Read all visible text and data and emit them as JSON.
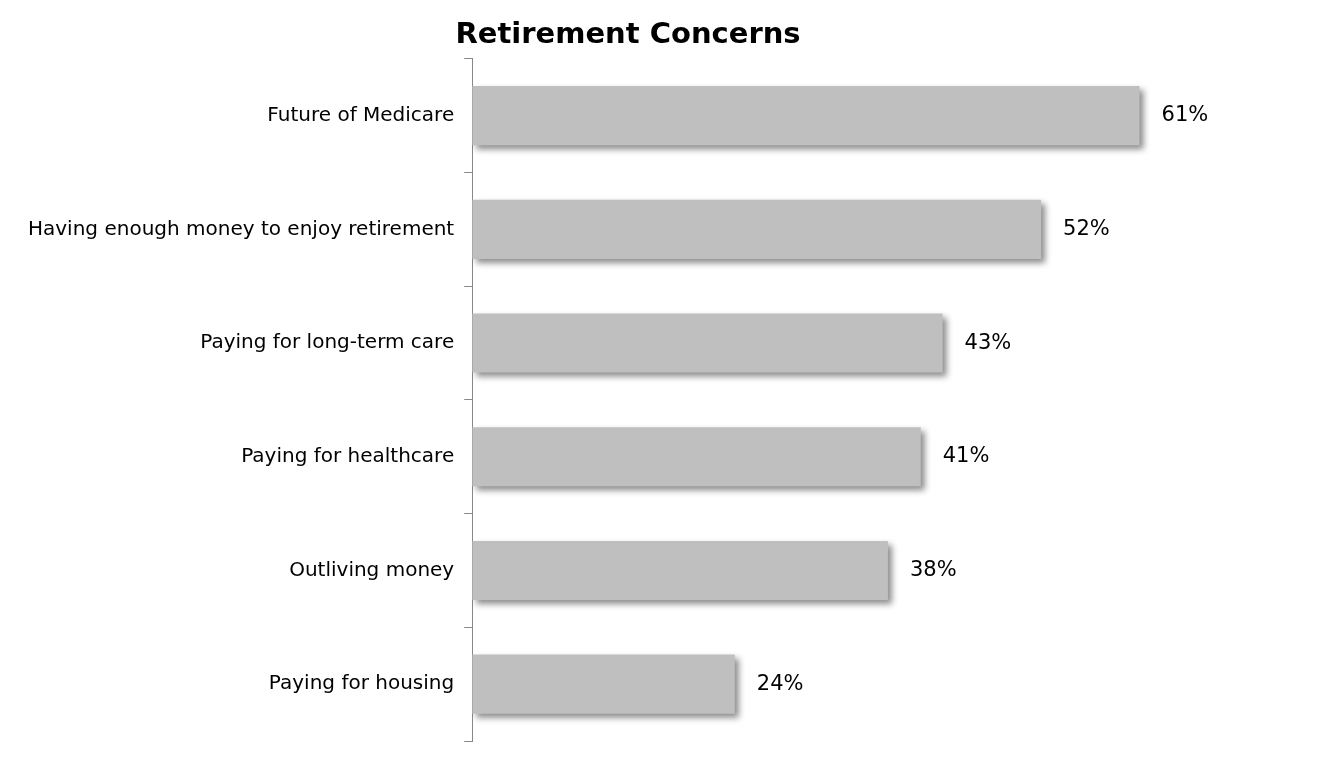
{
  "chart_data": {
    "type": "bar",
    "title": "Retirement Concerns",
    "orientation": "horizontal",
    "categories": [
      "Future of Medicare",
      "Having enough money to enjoy retirement",
      "Paying for long-term care",
      "Paying for healthcare",
      "Outliving money",
      "Paying for housing"
    ],
    "values": [
      61,
      52,
      43,
      41,
      38,
      24
    ],
    "value_labels": [
      "61%",
      "52%",
      "43%",
      "41%",
      "38%",
      "24%"
    ],
    "color": "#bfbfbf",
    "grid": false,
    "legend": false
  }
}
